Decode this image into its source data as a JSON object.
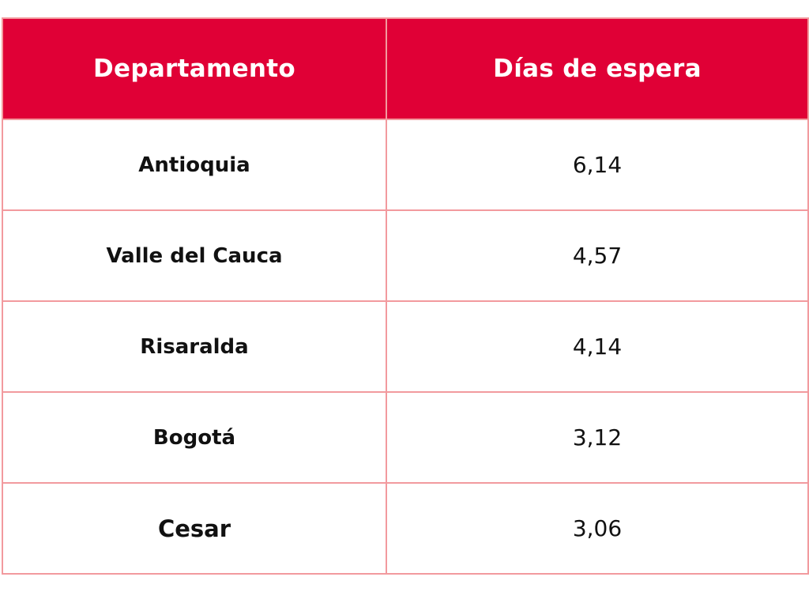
{
  "table": {
    "headers": [
      "Departamento",
      "Días de espera"
    ],
    "rows": [
      {
        "departamento": "Antioquia",
        "dias": "6,14"
      },
      {
        "departamento": "Valle del Cauca",
        "dias": "4,57"
      },
      {
        "departamento": "Risaralda",
        "dias": "4,14"
      },
      {
        "departamento": "Bogotá",
        "dias": "3,12"
      },
      {
        "departamento": "Cesar",
        "dias": "3,06"
      }
    ]
  },
  "colors": {
    "header_bg": "#e00036",
    "header_text": "#ffffff",
    "border": "#f29a9e",
    "cell_text": "#111111"
  }
}
